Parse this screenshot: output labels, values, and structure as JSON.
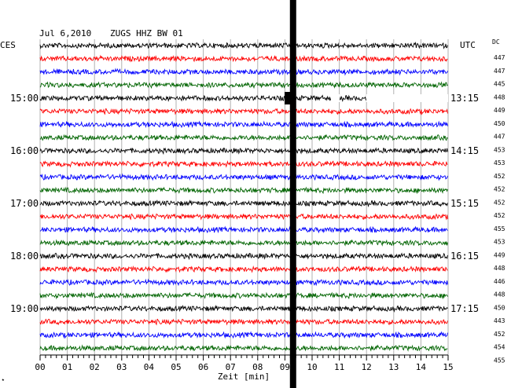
{
  "header": {
    "date": "Jul 6,2010",
    "station": "ZUGS HHZ BW 01",
    "left_zone": "CES",
    "right_zone": "UTC",
    "dc_label": "DC"
  },
  "chart_data": {
    "type": "line",
    "title": "Jul 6,2010   ZUGS HHZ BW 01",
    "xlabel": "Zeit [min]",
    "xlim": [
      0,
      15
    ],
    "x_ticks": [
      "00",
      "01",
      "02",
      "03",
      "04",
      "05",
      "06",
      "07",
      "08",
      "09",
      "10",
      "11",
      "12",
      "13",
      "14",
      "15"
    ],
    "left_time_labels": [
      "15:00",
      "16:00",
      "17:00",
      "18:00",
      "19:00"
    ],
    "right_time_labels": [
      "13:15",
      "14:15",
      "15:15",
      "16:15",
      "17:15"
    ],
    "trace_colors": [
      "#000000",
      "#ff0000",
      "#0000ff",
      "#006400"
    ],
    "dc_offsets": [
      447,
      447,
      445,
      448,
      449,
      450,
      447,
      453,
      453,
      452,
      452,
      452,
      452,
      455,
      453,
      449,
      448,
      446,
      448,
      450,
      443,
      452,
      454,
      455
    ],
    "event_minute": 9.3,
    "grid": true
  }
}
